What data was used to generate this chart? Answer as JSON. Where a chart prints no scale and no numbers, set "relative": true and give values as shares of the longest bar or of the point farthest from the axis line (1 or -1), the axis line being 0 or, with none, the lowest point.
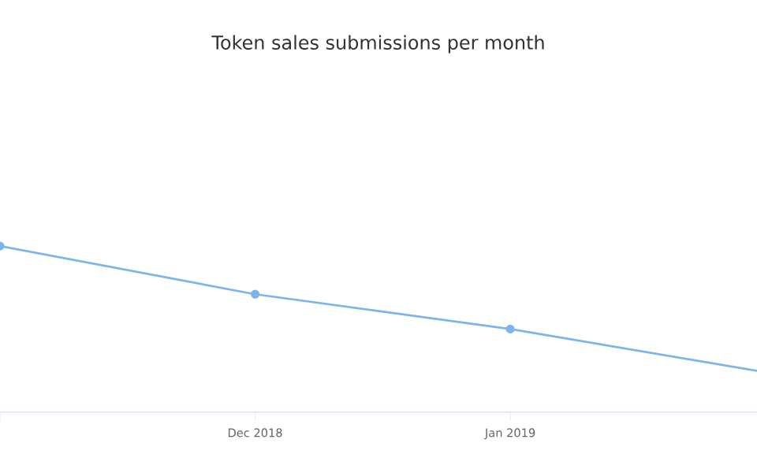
{
  "chart_data": {
    "type": "line",
    "title": "Token sales submissions per month",
    "relative": true,
    "categories": [
      null,
      "Dec 2018",
      "Jan 2019",
      null
    ],
    "series": [
      {
        "color": "#7cb5ec",
        "values": [
          1,
          0.71,
          0.5,
          0.24
        ]
      }
    ],
    "marker": "circle",
    "line_style": "solid"
  }
}
